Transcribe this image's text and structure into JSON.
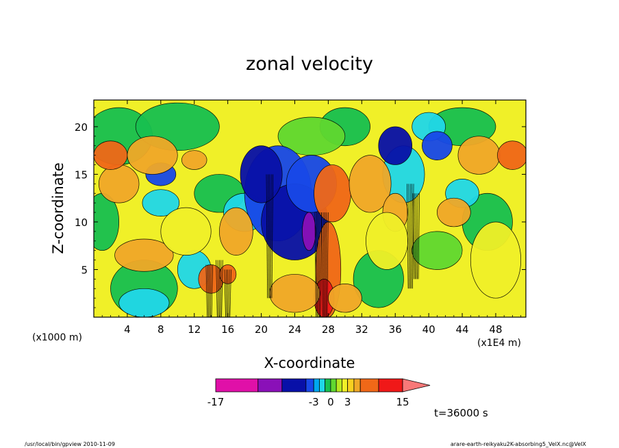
{
  "chart_data": {
    "type": "heatmap",
    "title": "zonal velocity",
    "xlabel": "X-coordinate",
    "ylabel": "Z-coordinate",
    "x_unit": "(x1E4 m)",
    "y_unit": "(x1000 m)",
    "xlim": [
      0,
      51.6
    ],
    "ylim": [
      0,
      22.8
    ],
    "x_ticks": [
      "4",
      "8",
      "12",
      "16",
      "20",
      "24",
      "28",
      "32",
      "36",
      "40",
      "44",
      "48"
    ],
    "y_ticks": [
      "5",
      "10",
      "15",
      "20"
    ],
    "x_tick_values": [
      4,
      8,
      12,
      16,
      20,
      24,
      28,
      32,
      36,
      40,
      44,
      48
    ],
    "y_tick_values": [
      5,
      10,
      15,
      20
    ],
    "colorbar": {
      "boundaries": [
        -17,
        -12,
        -9,
        -6,
        -3,
        -2,
        -1,
        0,
        1,
        2,
        3,
        5,
        7,
        10,
        15,
        20
      ],
      "colors": [
        "#e010a8",
        "#8a10b8",
        "#0810a8",
        "#1848e8",
        "#00a8f0",
        "#20d8e8",
        "#18c050",
        "#60d830",
        "#b8e820",
        "#f0f028",
        "#f8d020",
        "#f0a828",
        "#f06818",
        "#f01818",
        "#f87878"
      ],
      "tick_labels": [
        "-17",
        "-3",
        "0",
        "3",
        "15"
      ],
      "tick_values": [
        -17,
        -3,
        0,
        3,
        15
      ]
    },
    "grid": false
  },
  "annotations": {
    "time": "t=36000 s",
    "footer_left": "/usr/local/bin/gpview  2010-11-09",
    "footer_right": "arare-earth-reikyaku2K-absorbing5_VelX.nc@VelX"
  }
}
